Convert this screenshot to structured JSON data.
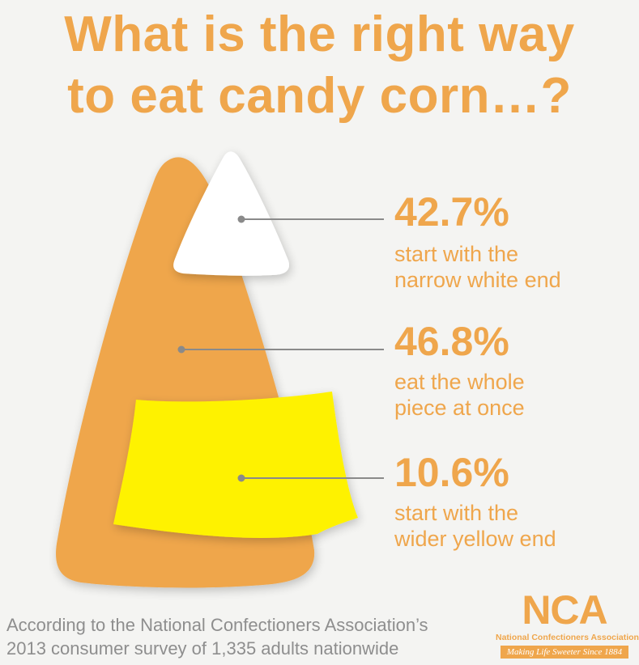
{
  "title": {
    "line1": "What is the right way",
    "line2": "to eat candy corn…?"
  },
  "chart_data": {
    "type": "pie",
    "categories": [
      "start with the narrow white end",
      "eat the whole piece at once",
      "start with the wider yellow end"
    ],
    "values": [
      42.7,
      46.8,
      10.6
    ],
    "unit": "%",
    "title": "What is the right way to eat candy corn…?",
    "items": [
      {
        "percent": "42.7%",
        "label_line1": "start with the",
        "label_line2": "narrow white end"
      },
      {
        "percent": "46.8%",
        "label_line1": "eat the whole",
        "label_line2": "piece at once"
      },
      {
        "percent": "10.6%",
        "label_line1": "start with the",
        "label_line2": "wider yellow end"
      }
    ]
  },
  "colors": {
    "accent_orange": "#efa64c",
    "white_tip": "#ffffff",
    "yellow_base": "#fef200",
    "leader_line": "#8a8a8a",
    "footer_text": "#8e8e8e",
    "background": "#f4f4f2"
  },
  "footer": {
    "line1": "According to the National Confectioners Association’s",
    "line2": "2013 consumer survey of 1,335 adults nationwide"
  },
  "logo": {
    "letters": "NCA",
    "name": "National Confectioners Association",
    "tagline": "Making Life Sweeter Since 1884"
  }
}
